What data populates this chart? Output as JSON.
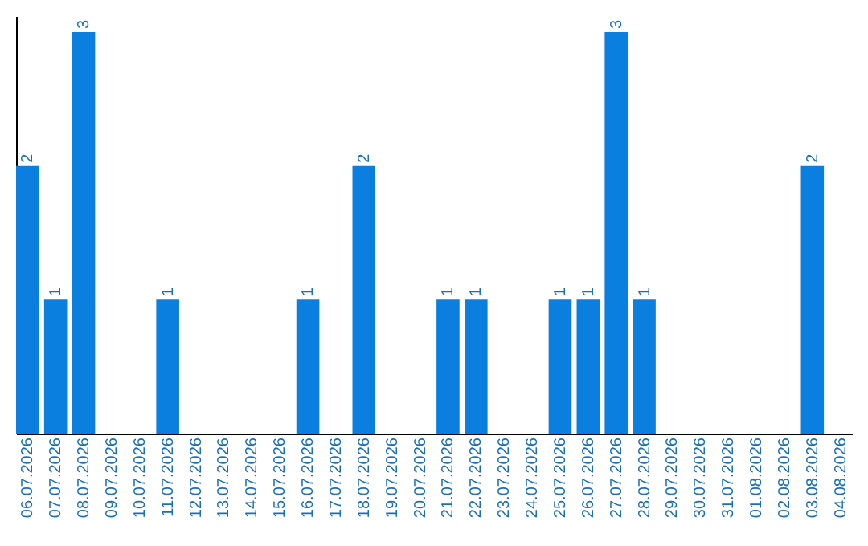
{
  "chart_data": {
    "type": "bar",
    "categories": [
      "06.07.2026",
      "07.07.2026",
      "08.07.2026",
      "09.07.2026",
      "10.07.2026",
      "11.07.2026",
      "12.07.2026",
      "13.07.2026",
      "14.07.2026",
      "15.07.2026",
      "16.07.2026",
      "17.07.2026",
      "18.07.2026",
      "19.07.2026",
      "20.07.2026",
      "21.07.2026",
      "22.07.2026",
      "23.07.2026",
      "24.07.2026",
      "25.07.2026",
      "26.07.2026",
      "27.07.2026",
      "28.07.2026",
      "29.07.2026",
      "30.07.2026",
      "31.07.2026",
      "01.08.2026",
      "02.08.2026",
      "03.08.2026",
      "04.08.2026"
    ],
    "values": [
      2,
      1,
      3,
      0,
      0,
      1,
      0,
      0,
      0,
      0,
      1,
      0,
      2,
      0,
      0,
      1,
      1,
      0,
      0,
      1,
      1,
      3,
      1,
      0,
      0,
      0,
      0,
      0,
      2,
      0
    ],
    "value_labels": [
      "2",
      "1",
      "3",
      null,
      null,
      "1",
      null,
      null,
      null,
      null,
      "1",
      null,
      "2",
      null,
      null,
      "1",
      "1",
      null,
      null,
      "1",
      "1",
      "3",
      "1",
      null,
      null,
      null,
      null,
      null,
      "2",
      null
    ],
    "color": "#0a7fe0",
    "grid": false
  }
}
